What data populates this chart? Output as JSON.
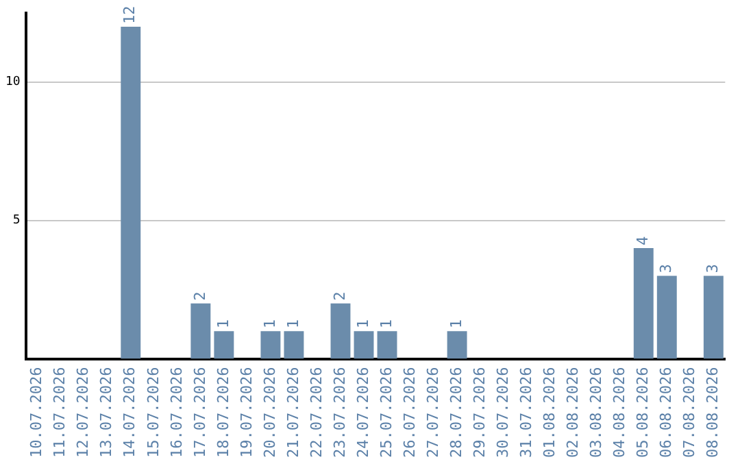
{
  "chart_data": {
    "type": "bar",
    "categories": [
      "10.07.2026",
      "11.07.2026",
      "12.07.2026",
      "13.07.2026",
      "14.07.2026",
      "15.07.2026",
      "16.07.2026",
      "17.07.2026",
      "18.07.2026",
      "19.07.2026",
      "20.07.2026",
      "21.07.2026",
      "22.07.2026",
      "23.07.2026",
      "24.07.2026",
      "25.07.2026",
      "26.07.2026",
      "27.07.2026",
      "28.07.2026",
      "29.07.2026",
      "30.07.2026",
      "31.07.2026",
      "01.08.2026",
      "02.08.2026",
      "03.08.2026",
      "04.08.2026",
      "05.08.2026",
      "06.08.2026",
      "07.08.2026",
      "08.08.2026"
    ],
    "values": [
      0,
      0,
      0,
      0,
      12,
      0,
      0,
      2,
      1,
      0,
      1,
      1,
      0,
      2,
      1,
      1,
      0,
      0,
      1,
      0,
      0,
      0,
      0,
      0,
      0,
      0,
      4,
      3,
      0,
      3
    ],
    "value_labels": [
      null,
      null,
      null,
      null,
      "12",
      null,
      null,
      "2",
      "1",
      null,
      "1",
      "1",
      null,
      "2",
      "1",
      "1",
      null,
      null,
      "1",
      null,
      null,
      null,
      null,
      null,
      null,
      null,
      "4",
      "3",
      null,
      "3"
    ],
    "color": "#6b8cab",
    "ylim": [
      0,
      12.5
    ],
    "yticks": [
      5,
      10
    ],
    "grid": "y",
    "legend": false
  }
}
